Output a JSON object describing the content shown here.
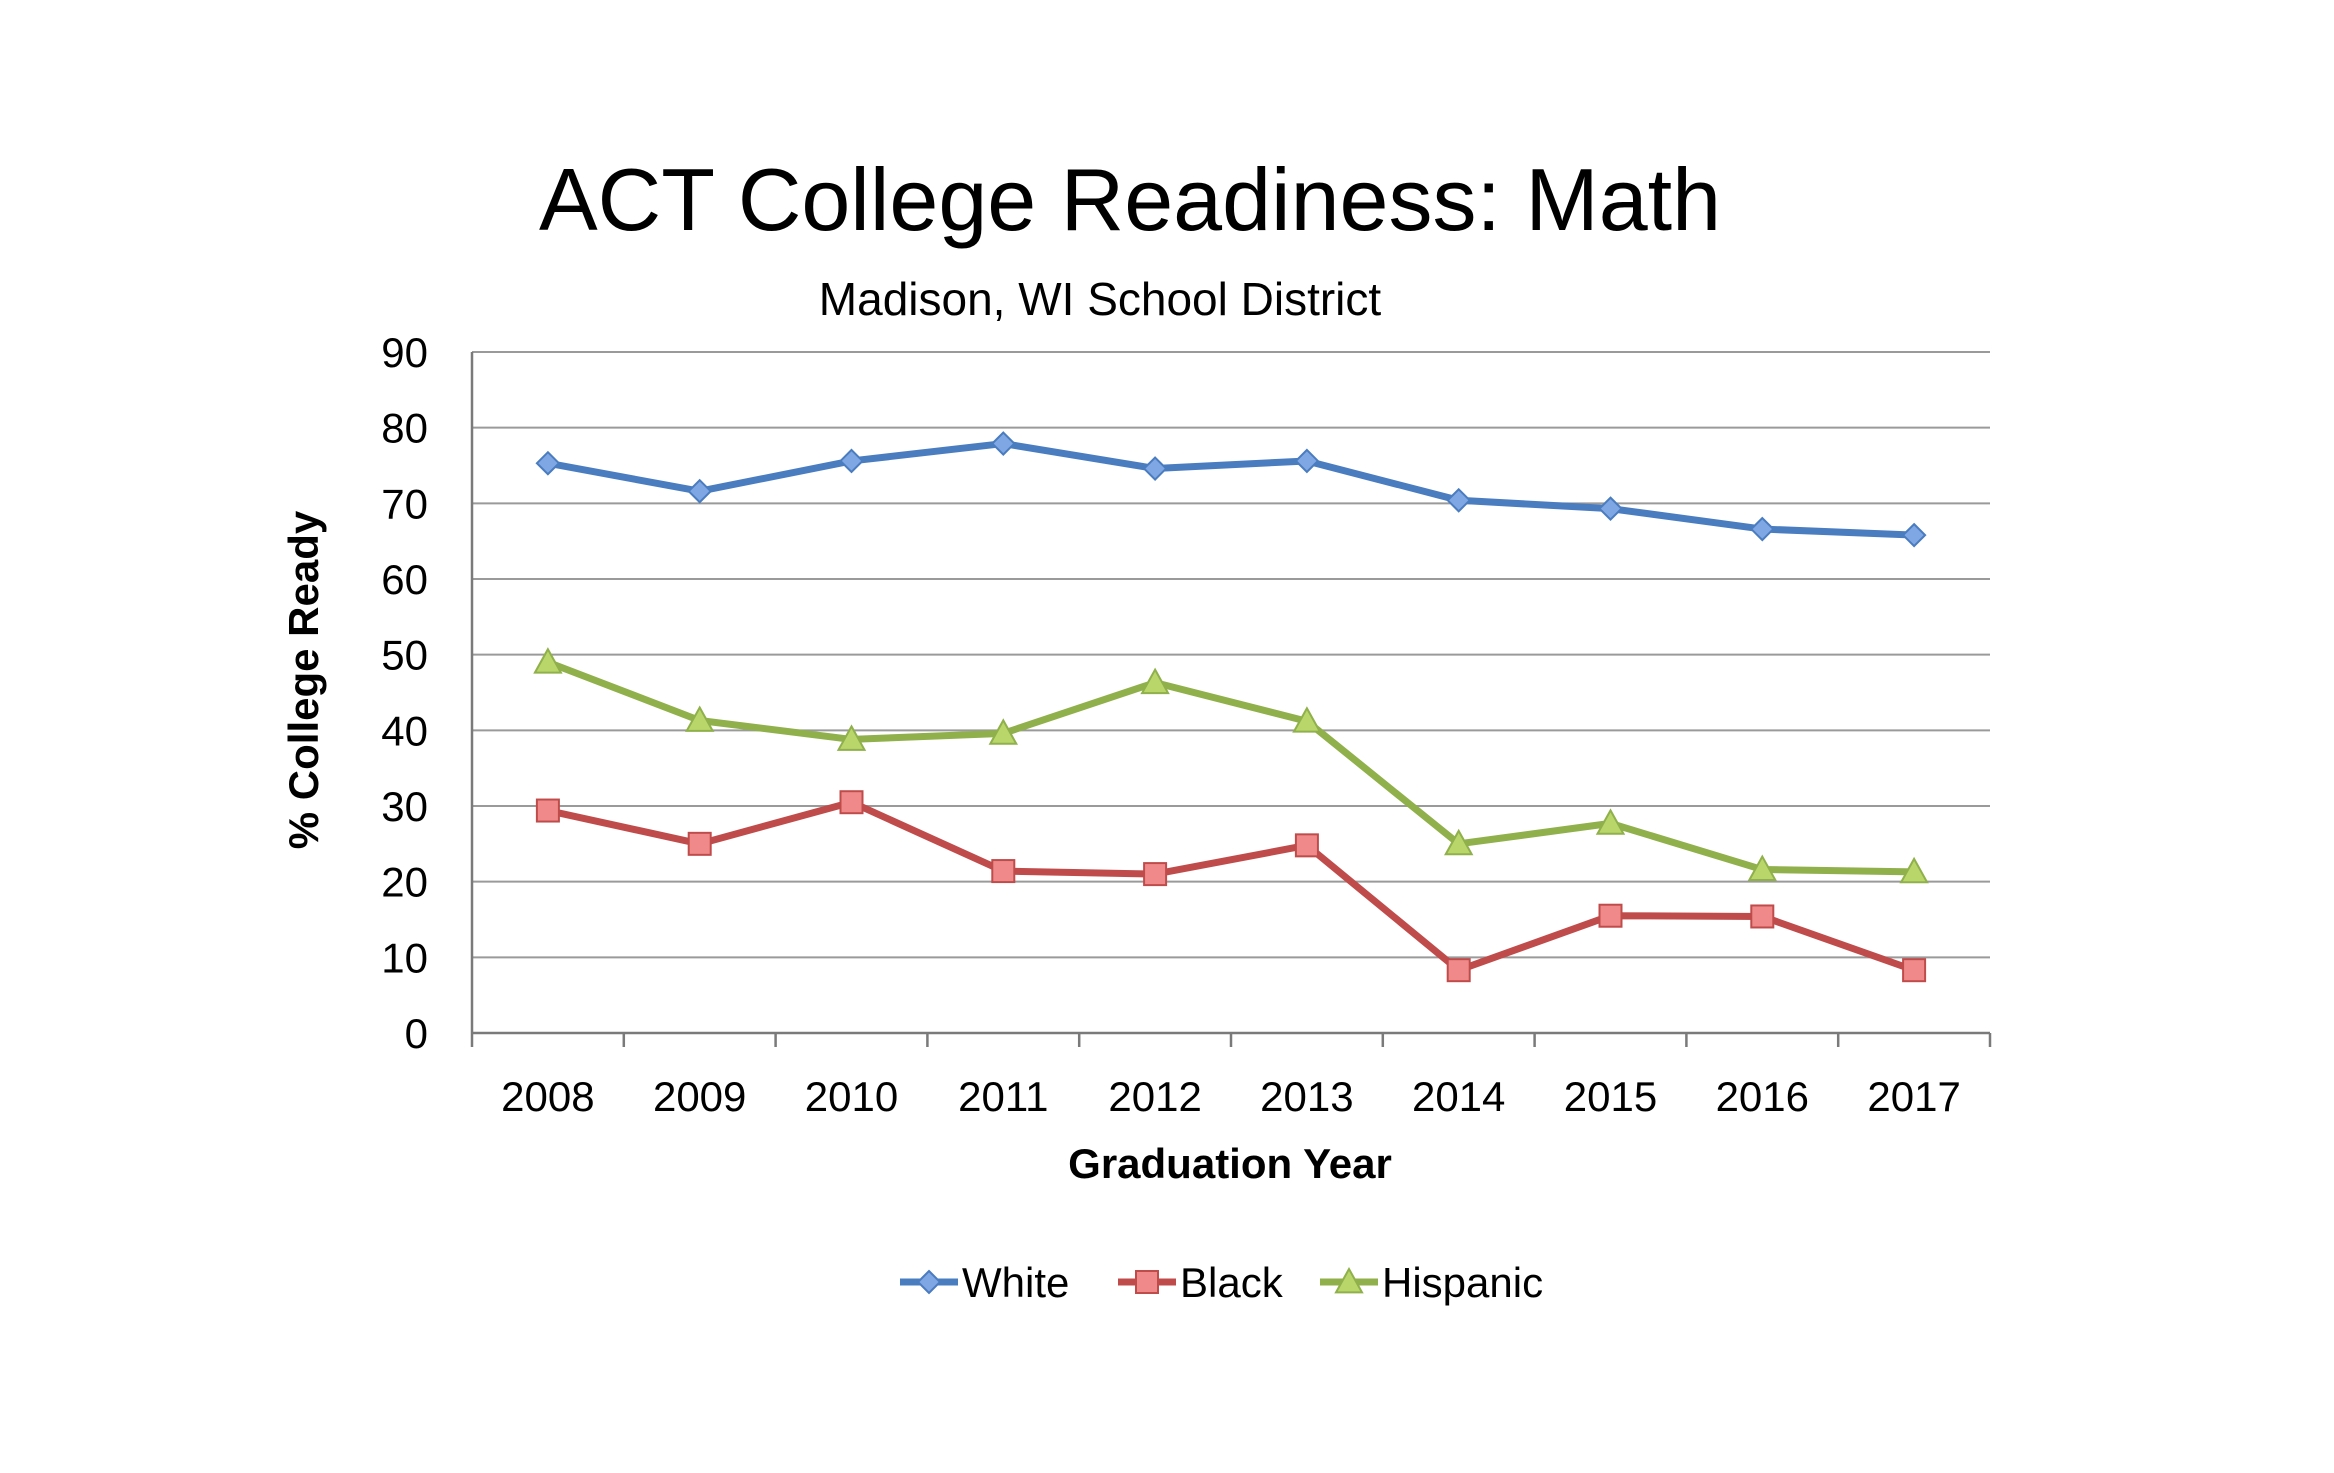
{
  "chart_data": {
    "type": "line",
    "title": "ACT College Readiness: Math",
    "subtitle": "Madison, WI School District",
    "xlabel": "Graduation Year",
    "ylabel": "% College Ready",
    "categories": [
      "2008",
      "2009",
      "2010",
      "2011",
      "2012",
      "2013",
      "2014",
      "2015",
      "2016",
      "2017"
    ],
    "ylim": [
      0,
      90
    ],
    "yticks": [
      "0",
      "10",
      "20",
      "30",
      "40",
      "50",
      "60",
      "70",
      "80",
      "90"
    ],
    "grid": true,
    "legend_position": "bottom",
    "series": [
      {
        "name": "White",
        "color": "#4a7cc0",
        "marker": "diamond",
        "marker_fill": "#7ea7e3",
        "values": [
          75.3,
          71.6,
          75.6,
          77.9,
          74.6,
          75.6,
          70.4,
          69.3,
          66.6,
          65.8
        ]
      },
      {
        "name": "Black",
        "color": "#c04b4b",
        "marker": "square",
        "marker_fill": "#f08a8a",
        "values": [
          29.4,
          25.0,
          30.5,
          21.4,
          21.0,
          24.8,
          8.3,
          15.5,
          15.4,
          8.3
        ]
      },
      {
        "name": "Hispanic",
        "color": "#8fb04a",
        "marker": "triangle",
        "marker_fill": "#b9d66b",
        "values": [
          49.0,
          41.3,
          38.8,
          39.6,
          46.3,
          41.2,
          25.0,
          27.7,
          21.6,
          21.3
        ]
      }
    ]
  }
}
